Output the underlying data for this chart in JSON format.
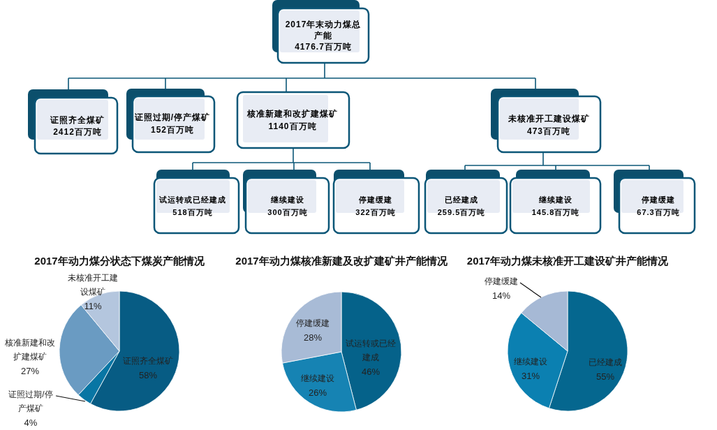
{
  "chart_data": [
    {
      "type": "other",
      "annotations": [
        "2017年末动力煤总产能",
        "4176.7百万吨",
        "证照齐全煤矿",
        "2412百万吨",
        "证照过期/停产煤矿",
        "152百万吨",
        "核准新建和改扩建煤矿",
        "1140百万吨",
        "未核准开工建设煤矿",
        "473百万吨",
        "试运转或已经建成",
        "518百万吨",
        "继续建设",
        "300百万吨",
        "停建缓建",
        "322百万吨",
        "已经建成",
        "259.5百万吨",
        "继续建设",
        "145.8百万吨",
        "停建缓建",
        "67.3百万吨"
      ]
    },
    {
      "type": "pie",
      "title": "2017年动力煤分状态下煤炭产能情况",
      "categories": [
        "证照齐全煤矿",
        "证照过期/停产煤矿",
        "核准新建和改扩建煤矿",
        "未核准开工建设煤矿"
      ],
      "values": [
        58,
        4,
        27,
        11
      ],
      "value_labels": [
        "58%",
        "4%",
        "27%",
        "11%"
      ],
      "colors": [
        "#075c84",
        "#0876a4",
        "#6a9bc2",
        "#b4c6de"
      ]
    },
    {
      "type": "pie",
      "title": "2017年动力煤核准新建及改扩建矿井产能情况",
      "categories": [
        "试运转或已经建成",
        "继续建设",
        "停建缓建"
      ],
      "values": [
        46,
        26,
        28
      ],
      "value_labels": [
        "46%",
        "26%",
        "28%"
      ],
      "colors": [
        "#05628a",
        "#1683b3",
        "#a8bbd6"
      ]
    },
    {
      "type": "pie",
      "title": "2017年动力煤未核准开工建设矿井产能情况",
      "categories": [
        "已经建成",
        "继续建设",
        "停建缓建"
      ],
      "values": [
        55,
        31,
        14
      ],
      "value_labels": [
        "55%",
        "31%",
        "14%"
      ],
      "colors": [
        "#05678f",
        "#0b80b1",
        "#a6b9d5"
      ]
    }
  ]
}
